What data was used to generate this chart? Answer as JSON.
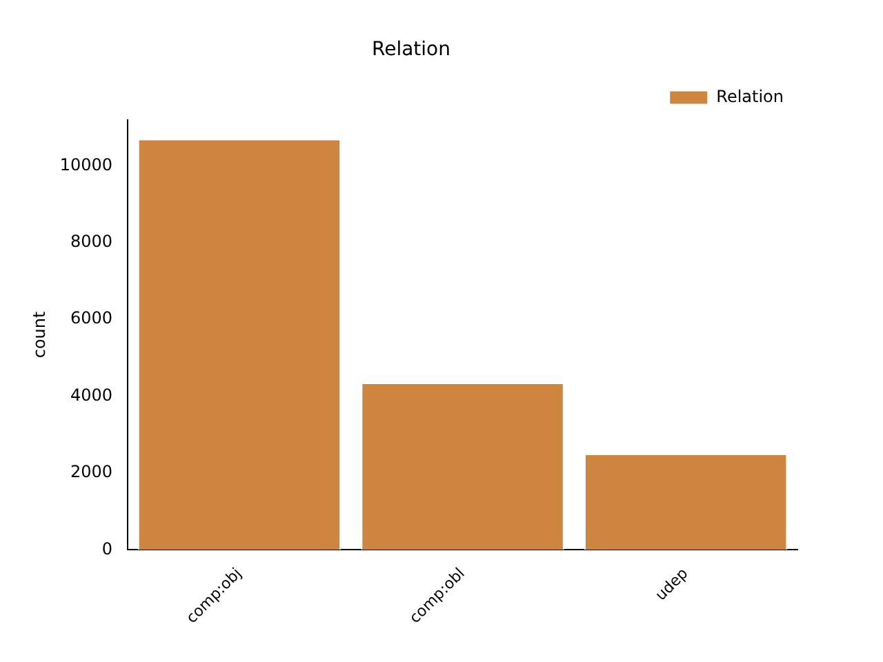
{
  "chart_data": {
    "type": "bar",
    "title": "Relation",
    "ylabel": "count",
    "categories": [
      "comp:obj",
      "comp:obl",
      "udep"
    ],
    "series": [
      {
        "name": "Relation",
        "color": "#cd853f",
        "values": [
          10700,
          4350,
          2500
        ]
      }
    ],
    "ylim": [
      0,
      11200
    ],
    "yticks": [
      0,
      2000,
      4000,
      6000,
      8000,
      10000
    ],
    "grid": false,
    "legend": "top right"
  }
}
